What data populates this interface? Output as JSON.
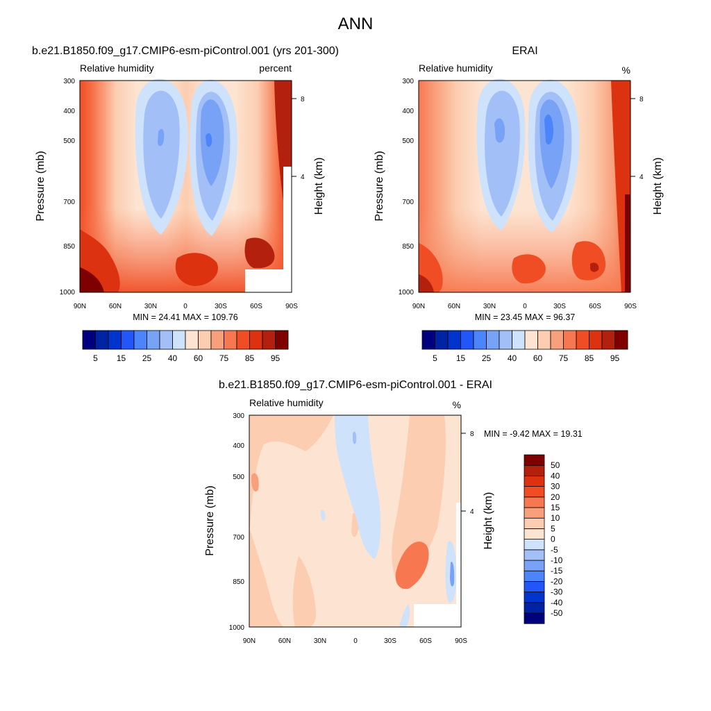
{
  "figure": {
    "title": "ANN"
  },
  "panels": [
    {
      "case_title": "b.e21.B1850.f09_g17.CMIP6-esm-piControl.001 (yrs 201-300)",
      "left_title": "Relative humidity",
      "right_title": "percent",
      "stats": "MIN =  24.41  MAX = 109.76"
    },
    {
      "case_title": "ERAI",
      "left_title": "Relative humidity",
      "right_title": "%",
      "stats": "MIN =  23.45  MAX =  96.37"
    },
    {
      "case_title": "b.e21.B1850.f09_g17.CMIP6-esm-piControl.001 - ERAI",
      "left_title": "Relative humidity",
      "right_title": "%",
      "stats": "MIN =  -9.42  MAX =  19.31"
    }
  ],
  "axes": {
    "ylabel": "Pressure (mb)",
    "y2label": "Height (km)"
  },
  "chart_data": [
    {
      "type": "heatmap",
      "xlabel": "",
      "ylabel": "Pressure (mb)",
      "y2label": "Height (km)",
      "x_ticks": [
        "90N",
        "60N",
        "30N",
        "0",
        "30S",
        "60S",
        "90S"
      ],
      "y_ticks": [
        300,
        400,
        500,
        700,
        850,
        1000
      ],
      "y_scale": "log",
      "ylim": [
        1000,
        300
      ],
      "y2_ticks": [
        4,
        8
      ],
      "min": 24.41,
      "max": 109.76,
      "colorbar": {
        "orientation": "horizontal",
        "levels": [
          5,
          10,
          15,
          20,
          25,
          30,
          40,
          50,
          60,
          70,
          75,
          80,
          85,
          90,
          95
        ],
        "labels": [
          "5",
          "15",
          "25",
          "40",
          "60",
          "75",
          "85",
          "95"
        ],
        "colors": [
          "#00007f",
          "#0023a3",
          "#0034cc",
          "#2356f8",
          "#4c84fb",
          "#78a2f6",
          "#a3bff8",
          "#cfe2fb",
          "#fde4d2",
          "#fccdb0",
          "#f8a07c",
          "#f77850",
          "#f04d24",
          "#dc3210",
          "#b3200d",
          "#7f0000"
        ]
      },
      "missing_region": "bottom-right"
    },
    {
      "type": "heatmap",
      "xlabel": "",
      "ylabel": "Pressure (mb)",
      "y2label": "Height (km)",
      "x_ticks": [
        "90N",
        "60N",
        "30N",
        "0",
        "30S",
        "60S",
        "90S"
      ],
      "y_ticks": [
        300,
        400,
        500,
        700,
        850,
        1000
      ],
      "y_scale": "log",
      "ylim": [
        1000,
        300
      ],
      "y2_ticks": [
        4,
        8
      ],
      "min": 23.45,
      "max": 96.37,
      "colorbar": {
        "orientation": "horizontal",
        "levels": [
          5,
          10,
          15,
          20,
          25,
          30,
          40,
          50,
          60,
          70,
          75,
          80,
          85,
          90,
          95
        ],
        "labels": [
          "5",
          "15",
          "25",
          "40",
          "60",
          "75",
          "85",
          "95"
        ],
        "colors": [
          "#00007f",
          "#0023a3",
          "#0034cc",
          "#2356f8",
          "#4c84fb",
          "#78a2f6",
          "#a3bff8",
          "#cfe2fb",
          "#fde4d2",
          "#fccdb0",
          "#f8a07c",
          "#f77850",
          "#f04d24",
          "#dc3210",
          "#b3200d",
          "#7f0000"
        ]
      }
    },
    {
      "type": "heatmap",
      "xlabel": "",
      "ylabel": "Pressure (mb)",
      "y2label": "Height (km)",
      "x_ticks": [
        "90N",
        "60N",
        "30N",
        "0",
        "30S",
        "60S",
        "90S"
      ],
      "y_ticks": [
        300,
        400,
        500,
        700,
        850,
        1000
      ],
      "y_scale": "log",
      "ylim": [
        1000,
        300
      ],
      "y2_ticks": [
        4,
        8
      ],
      "min": -9.42,
      "max": 19.31,
      "colorbar": {
        "orientation": "vertical",
        "levels": [
          -50,
          -40,
          -30,
          -20,
          -15,
          -10,
          -5,
          0,
          5,
          10,
          15,
          20,
          30,
          40,
          50
        ],
        "labels": [
          "-50",
          "-40",
          "-30",
          "-20",
          "-15",
          "-10",
          "-5",
          "0",
          "5",
          "10",
          "15",
          "20",
          "30",
          "40",
          "50"
        ],
        "colors": [
          "#00007f",
          "#0023a3",
          "#0034cc",
          "#2356f8",
          "#4c84fb",
          "#78a2f6",
          "#a3bff8",
          "#cfe2fb",
          "#fde4d2",
          "#fccdb0",
          "#f8a07c",
          "#f77850",
          "#f04d24",
          "#dc3210",
          "#b3200d",
          "#7f0000"
        ]
      },
      "missing_region": "bottom-right"
    }
  ]
}
